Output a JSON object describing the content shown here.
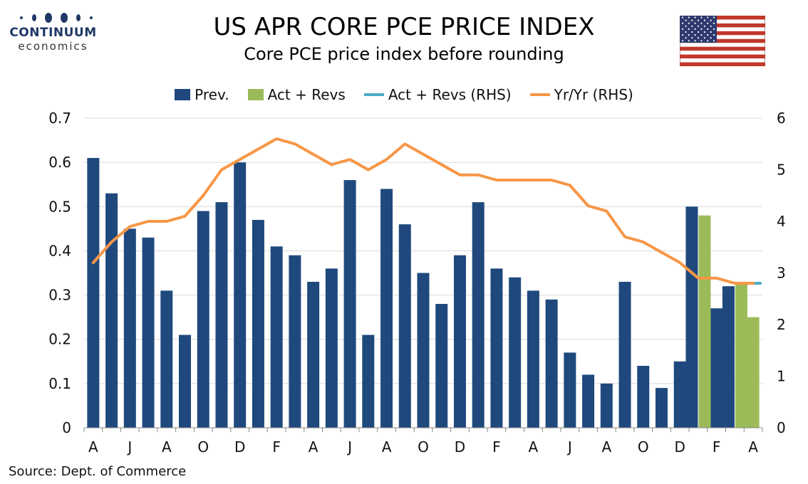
{
  "header": {
    "title": "US APR CORE PCE PRICE INDEX",
    "subtitle": "Core PCE price index before rounding",
    "logo_line1": "CONTINUUM",
    "logo_line2": "economics",
    "flag_icon": "us-flag-icon"
  },
  "footer": {
    "source": "Source: Dept. of Commerce"
  },
  "colors": {
    "prev": "#1f497d",
    "act": "#9bbb59",
    "act_rhs": "#4bacc6",
    "yoy": "#f79646",
    "grid": "#d9d9d9",
    "logo": "#1f3864"
  },
  "chart_data": {
    "type": "bar",
    "title": "US APR CORE PCE PRICE INDEX",
    "subtitle": "Core PCE price index before rounding",
    "legend_position": "top",
    "grid": true,
    "x_tick_labels": [
      "A",
      "J",
      "A",
      "O",
      "D",
      "F",
      "A",
      "J",
      "A",
      "O",
      "D",
      "F",
      "A",
      "J",
      "A",
      "O",
      "D",
      "F",
      "A"
    ],
    "y_left": {
      "min": 0,
      "max": 0.7,
      "ticks": [
        "0",
        "0.1",
        "0.2",
        "0.3",
        "0.4",
        "0.5",
        "0.6",
        "0.7"
      ]
    },
    "y_right": {
      "min": 0,
      "max": 6,
      "ticks": [
        "0",
        "1",
        "2",
        "3",
        "4",
        "5",
        "6"
      ]
    },
    "series": [
      {
        "name": "Prev.",
        "type": "bar",
        "axis": "left",
        "values": [
          0.61,
          0.53,
          0.45,
          0.43,
          0.31,
          0.21,
          0.49,
          0.51,
          0.6,
          0.47,
          0.41,
          0.39,
          0.33,
          0.36,
          0.56,
          0.21,
          0.54,
          0.46,
          0.35,
          0.28,
          0.39,
          0.51,
          0.36,
          0.34,
          0.31,
          0.29,
          0.17,
          0.12,
          0.1,
          0.33,
          0.14,
          0.09,
          0.15,
          0.5,
          0.27,
          0.32,
          null
        ]
      },
      {
        "name": "Act + Revs",
        "type": "bar",
        "axis": "left",
        "values": [
          null,
          null,
          null,
          null,
          null,
          null,
          null,
          null,
          null,
          null,
          null,
          null,
          null,
          null,
          null,
          null,
          null,
          null,
          null,
          null,
          null,
          null,
          null,
          null,
          null,
          null,
          null,
          null,
          null,
          null,
          null,
          null,
          null,
          0.48,
          null,
          0.33,
          0.25
        ]
      },
      {
        "name": "Act + Revs (RHS)",
        "type": "line",
        "axis": "right",
        "values": [
          null,
          null,
          null,
          null,
          null,
          null,
          null,
          null,
          null,
          null,
          null,
          null,
          null,
          null,
          null,
          null,
          null,
          null,
          null,
          null,
          null,
          null,
          null,
          null,
          null,
          null,
          null,
          null,
          null,
          null,
          null,
          null,
          null,
          null,
          null,
          2.8,
          2.8
        ]
      },
      {
        "name": "Yr/Yr (RHS)",
        "type": "line",
        "axis": "right",
        "values": [
          3.2,
          3.6,
          3.9,
          4.0,
          4.0,
          4.1,
          4.5,
          5.0,
          5.2,
          5.4,
          5.6,
          5.5,
          5.3,
          5.1,
          5.2,
          5.0,
          5.2,
          5.5,
          5.3,
          5.1,
          4.9,
          4.9,
          4.8,
          4.8,
          4.8,
          4.8,
          4.7,
          4.3,
          4.2,
          3.7,
          3.6,
          3.4,
          3.2,
          2.9,
          2.9,
          2.8,
          2.8
        ]
      }
    ]
  }
}
